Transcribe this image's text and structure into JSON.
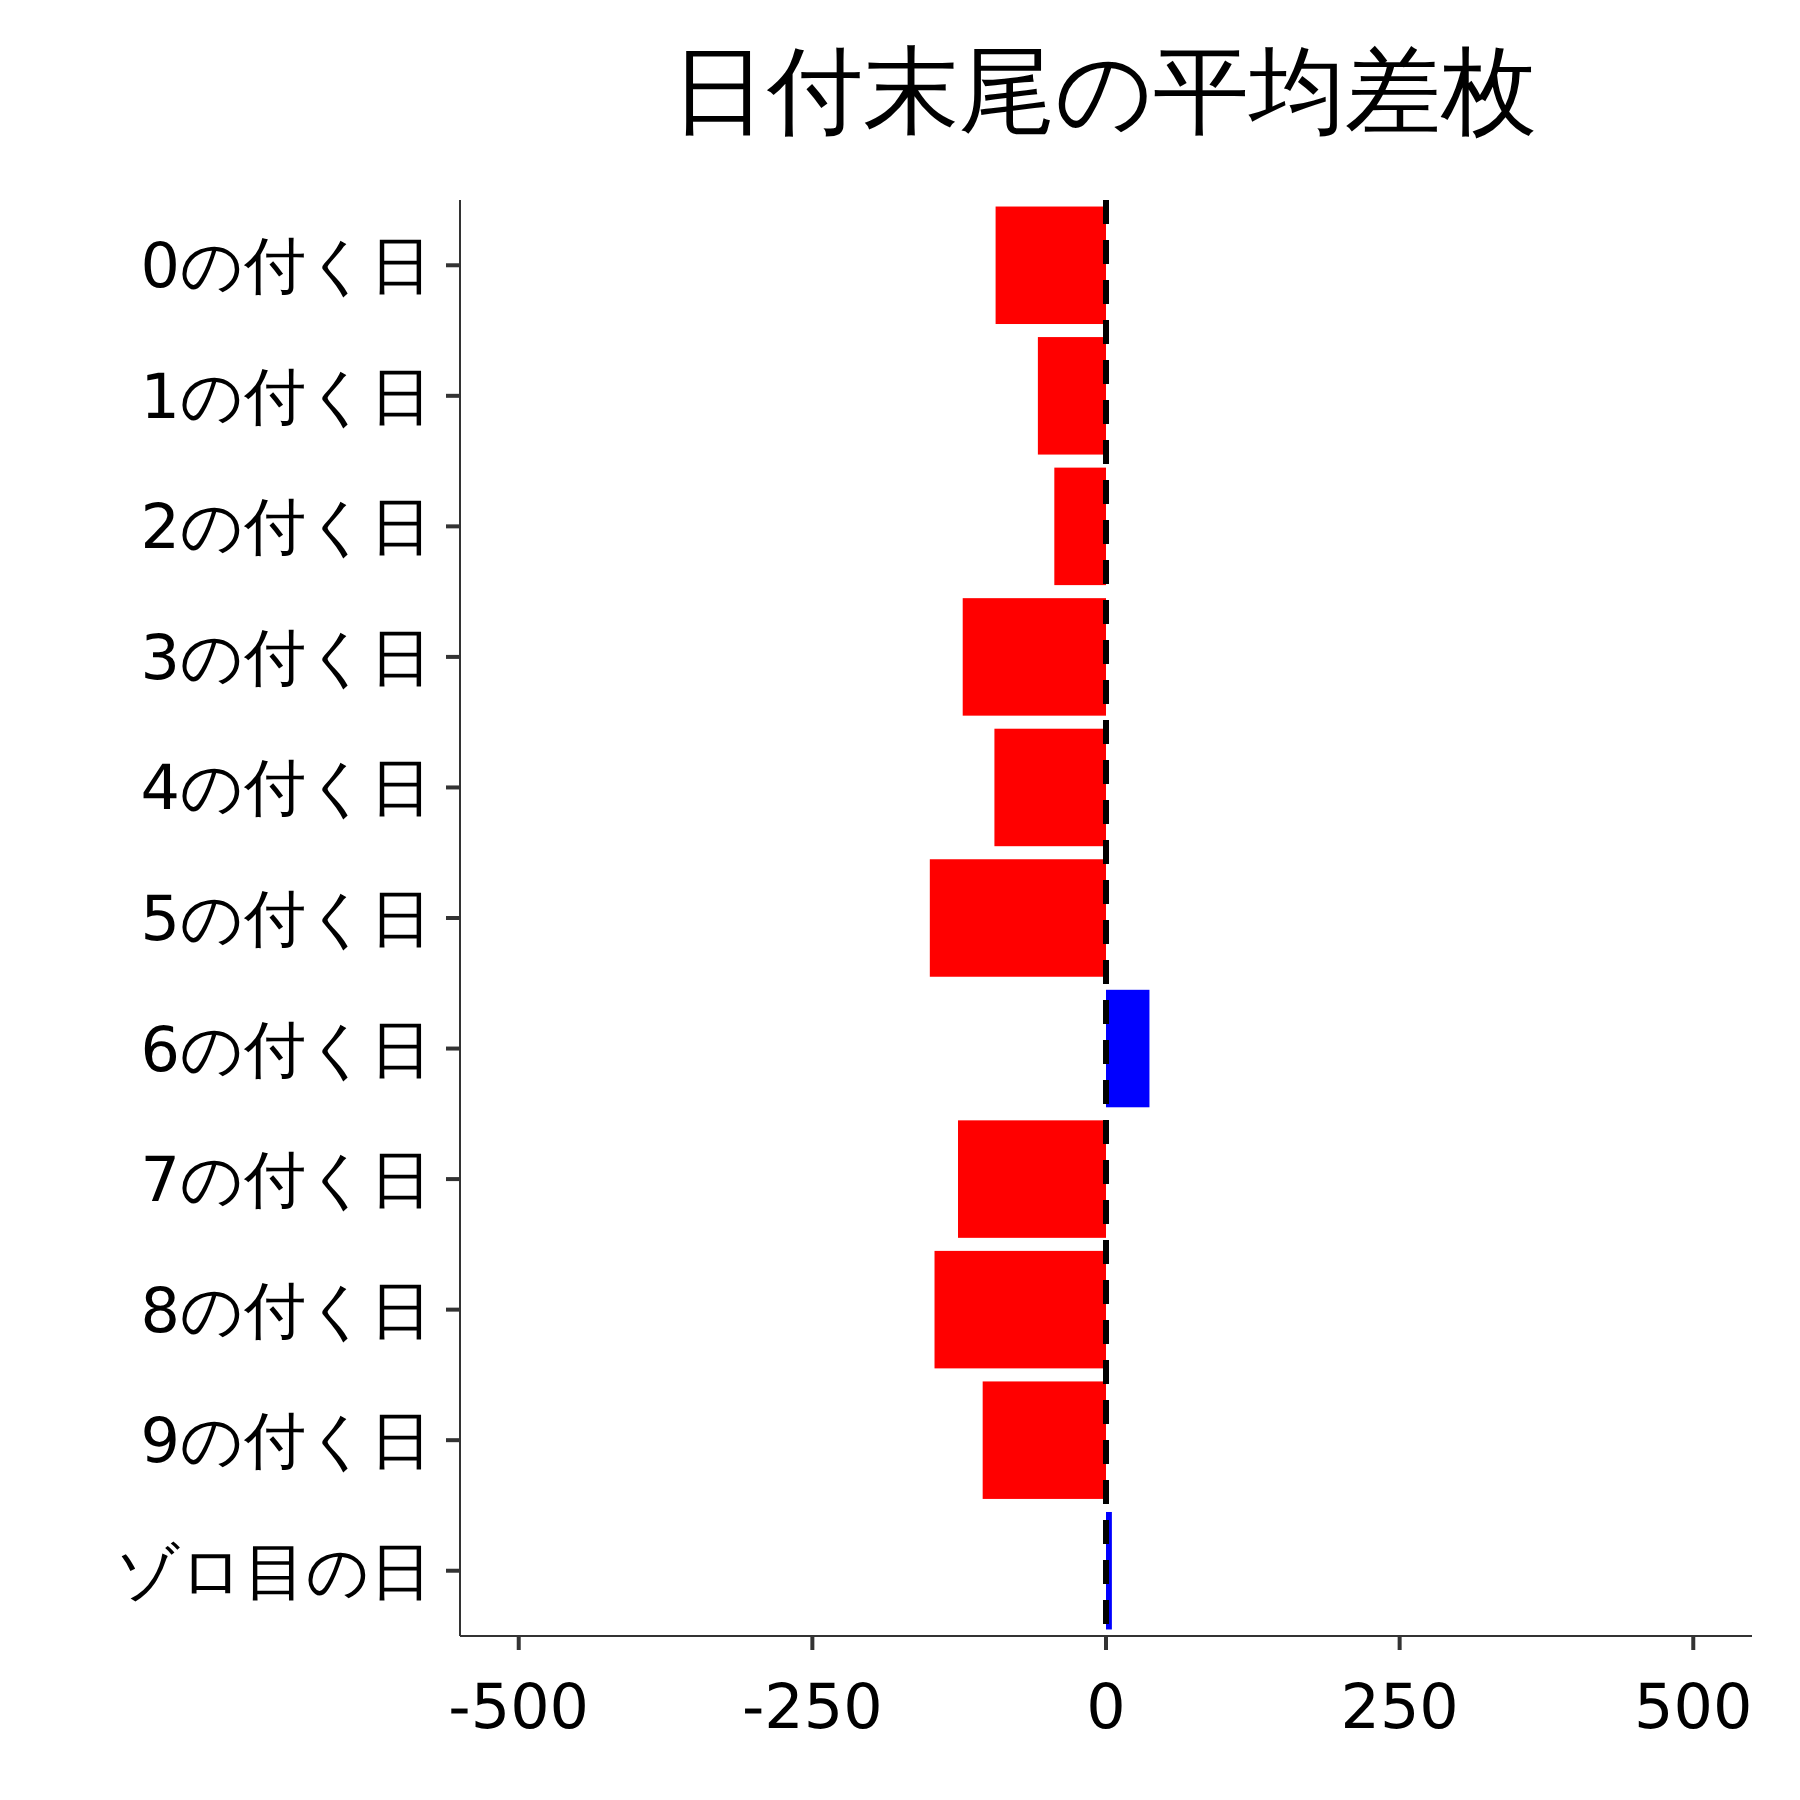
{
  "chart_data": {
    "type": "bar",
    "orientation": "horizontal",
    "title": "日付末尾の平均差枚",
    "categories": [
      "0の付く日",
      "1の付く日",
      "2の付く日",
      "3の付く日",
      "4の付く日",
      "5の付く日",
      "6の付く日",
      "7の付く日",
      "8の付く日",
      "9の付く日",
      "ゾロ目の日"
    ],
    "values": [
      -94,
      -58,
      -44,
      -122,
      -95,
      -150,
      37,
      -126,
      -146,
      -105,
      5
    ],
    "colors": [
      "#ff0000",
      "#ff0000",
      "#ff0000",
      "#ff0000",
      "#ff0000",
      "#ff0000",
      "#0000ff",
      "#ff0000",
      "#ff0000",
      "#ff0000",
      "#0000ff"
    ],
    "xlim": [
      -550,
      550
    ],
    "xticks": [
      -500,
      -250,
      0,
      250,
      500
    ],
    "ref_lines": [
      {
        "axis": "x",
        "value": 0,
        "color": "#000000",
        "line_style": "dashed"
      }
    ],
    "grid": false
  }
}
